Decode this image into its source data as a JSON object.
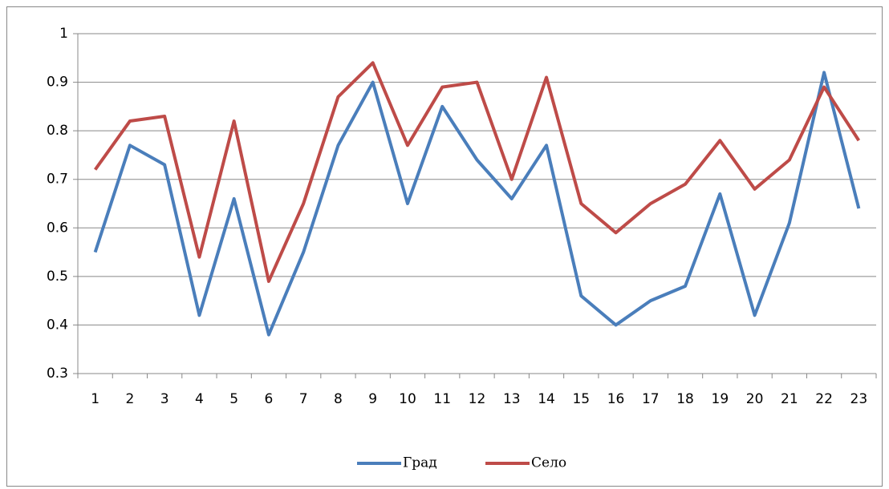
{
  "chart_data": {
    "type": "line",
    "categories": [
      "1",
      "2",
      "3",
      "4",
      "5",
      "6",
      "7",
      "8",
      "9",
      "10",
      "11",
      "12",
      "13",
      "14",
      "15",
      "16",
      "17",
      "18",
      "19",
      "20",
      "21",
      "22",
      "23"
    ],
    "series": [
      {
        "name": "Град",
        "color": "#4a7ebb",
        "values": [
          0.55,
          0.77,
          0.73,
          0.42,
          0.66,
          0.38,
          0.55,
          0.77,
          0.9,
          0.65,
          0.85,
          0.74,
          0.66,
          0.77,
          0.46,
          0.4,
          0.45,
          0.48,
          0.67,
          0.42,
          0.61,
          0.92,
          0.64
        ]
      },
      {
        "name": "Село",
        "color": "#be4b48",
        "values": [
          0.72,
          0.82,
          0.83,
          0.54,
          0.82,
          0.49,
          0.65,
          0.87,
          0.94,
          0.77,
          0.89,
          0.9,
          0.7,
          0.91,
          0.65,
          0.59,
          0.65,
          0.69,
          0.78,
          0.68,
          0.74,
          0.89,
          0.78
        ]
      }
    ],
    "ylim": [
      0.3,
      1
    ],
    "yticks": [
      0.3,
      0.4,
      0.5,
      0.6,
      0.7,
      0.8,
      0.9,
      1
    ],
    "grid": true,
    "legend": "bottom"
  }
}
